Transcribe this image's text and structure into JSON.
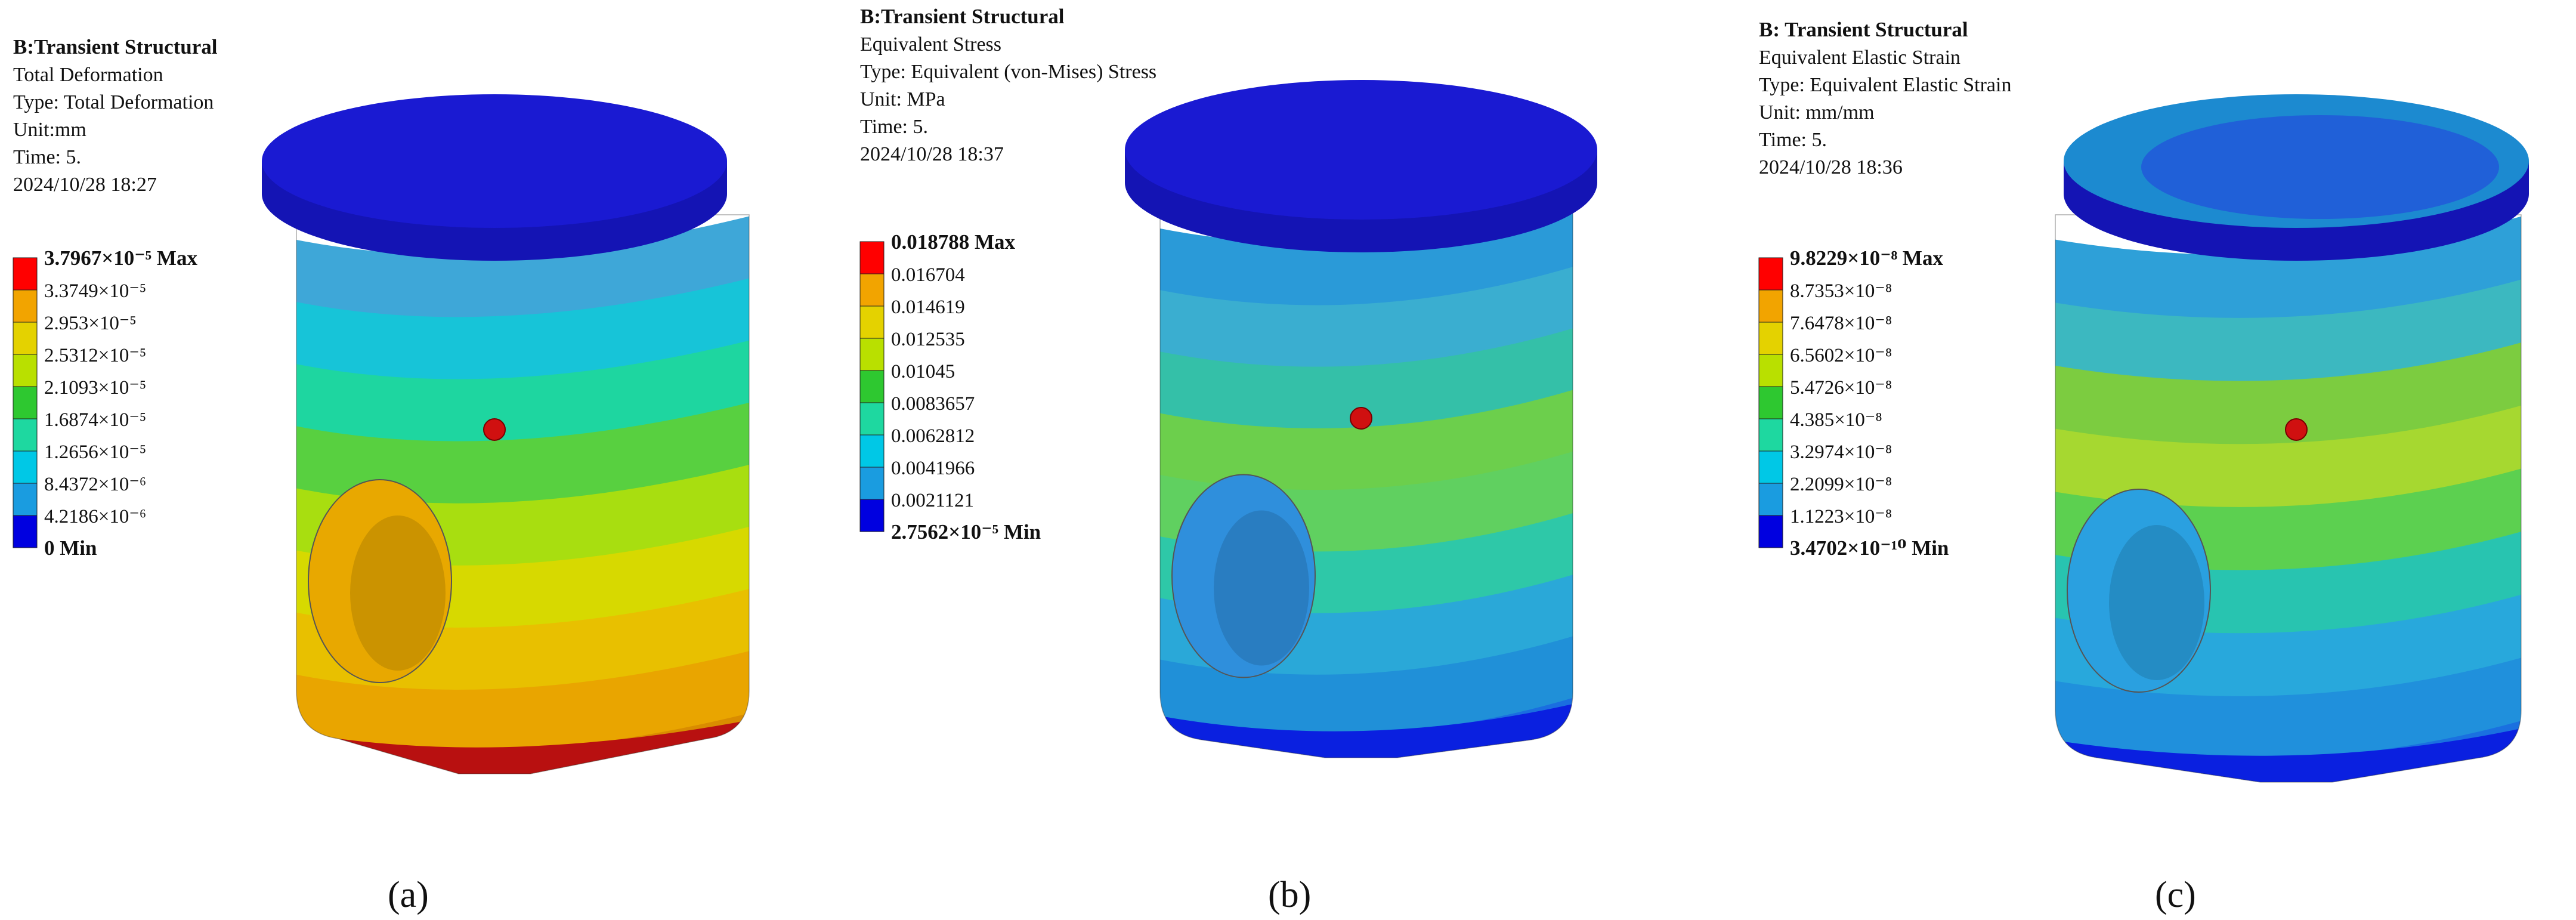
{
  "panels": [
    {
      "header": [
        "B:Transient Structural",
        "Total Deformation",
        "Type: Total Deformation",
        "Unit:mm",
        "Time: 5.",
        "2024/10/28 18:27"
      ],
      "legend": [
        "3.7967×10⁻⁵ Max",
        "3.3749×10⁻⁵",
        "2.953×10⁻⁵",
        "2.5312×10⁻⁵",
        "2.1093×10⁻⁵",
        "1.6874×10⁻⁵",
        "1.2656×10⁻⁵",
        "8.4372×10⁻⁶",
        "4.2186×10⁻⁶",
        "0 Min"
      ],
      "caption": "(a)"
    },
    {
      "header": [
        "B:Transient Structural",
        "Equivalent Stress",
        "Type: Equivalent (von-Mises) Stress",
        "Unit: MPa",
        "Time: 5.",
        "2024/10/28 18:37"
      ],
      "legend": [
        "0.018788 Max",
        "0.016704",
        "0.014619",
        "0.012535",
        "0.01045",
        "0.0083657",
        "0.0062812",
        "0.0041966",
        "0.0021121",
        "2.7562×10⁻⁵ Min"
      ],
      "caption": "(b)"
    },
    {
      "header": [
        "B: Transient Structural",
        "Equivalent Elastic Strain",
        "Type: Equivalent Elastic Strain",
        "Unit: mm/mm",
        "Time: 5.",
        "2024/10/28 18:36"
      ],
      "legend": [
        "9.8229×10⁻⁸ Max",
        "8.7353×10⁻⁸",
        "7.6478×10⁻⁸",
        "6.5602×10⁻⁸",
        "5.4726×10⁻⁸",
        "4.385×10⁻⁸",
        "3.2974×10⁻⁸",
        "2.2099×10⁻⁸",
        "1.1223×10⁻⁸",
        "3.4702×10⁻¹⁰ Min"
      ],
      "caption": "(c)"
    }
  ]
}
